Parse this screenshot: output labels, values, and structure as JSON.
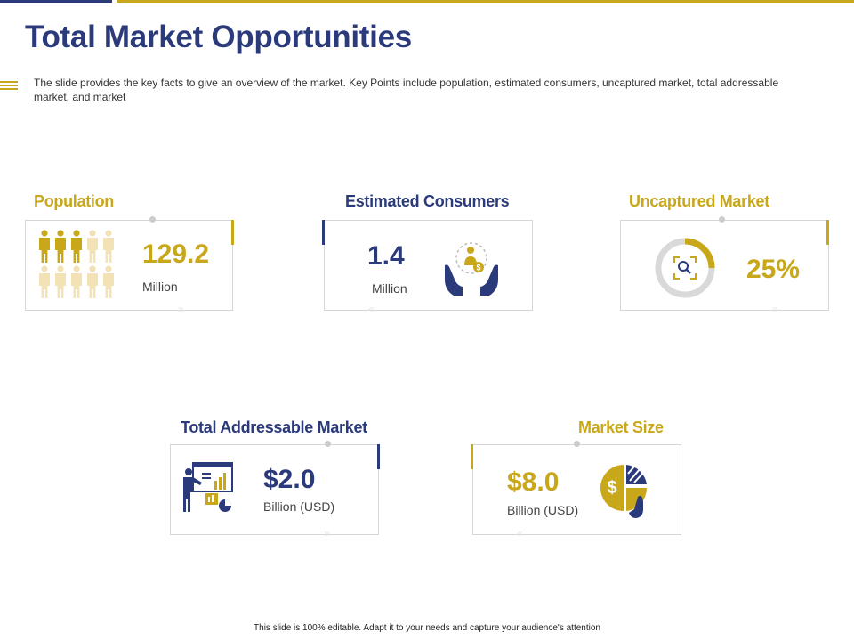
{
  "slide": {
    "title": "Total Market Opportunities",
    "subtitle": "The slide provides  the key facts to give  an overview  of the market. Key Points include population, estimated consumers, uncaptured market, total addressable  market, and market",
    "footer": "This slide is 100% editable.  Adapt it to your needs and capture your audience's attention"
  },
  "cards": {
    "population": {
      "title": "Population",
      "value": "129.2",
      "unit": "Million",
      "icon": "people-icon",
      "filled_of_total": [
        3,
        10
      ]
    },
    "estimated_consumers": {
      "title": "Estimated Consumers",
      "value": "1.4",
      "unit": "Million",
      "icon": "hands-holding-user-icon"
    },
    "uncaptured_market": {
      "title": "Uncaptured Market",
      "value": "25%",
      "icon": "target-donut-icon",
      "donut_fraction": 0.25
    },
    "total_addressable_market": {
      "title": "Total Addressable Market",
      "value": "$2.0",
      "unit": "Billion (USD)",
      "icon": "presenter-board-icon"
    },
    "market_size": {
      "title": "Market Size",
      "value": "$8.0",
      "unit": "Billion (USD)",
      "icon": "coin-pie-chart-icon"
    }
  },
  "colors": {
    "navy": "#2b3a7a",
    "gold": "#c9a71b",
    "light_gold": "#f2e2b6",
    "grey": "#d6d6d6"
  }
}
